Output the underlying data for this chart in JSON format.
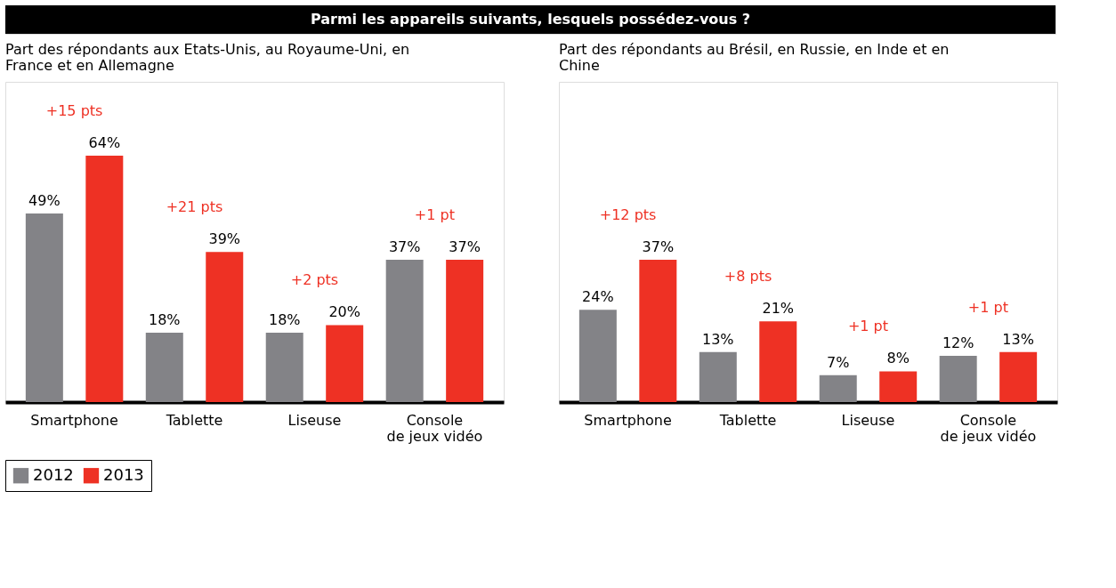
{
  "chart_data": [
    {
      "type": "bar",
      "title": "Parmi les appareils suivants, lesquels possédez-vous ?",
      "subtitle": "Part des répondants aux Etats-Unis, au Royaume-Uni, en\nFrance et en Allemagne",
      "categories": [
        "Smartphone",
        "Tablette",
        "Liseuse",
        "Console\nde jeux vidéo"
      ],
      "series": [
        {
          "name": "2012",
          "color": "#838387",
          "values": [
            49,
            18,
            18,
            37
          ],
          "value_labels": [
            "49%",
            "18%",
            "18%",
            "37%"
          ]
        },
        {
          "name": "2013",
          "color": "#ee3124",
          "values": [
            64,
            39,
            20,
            37
          ],
          "value_labels": [
            "64%",
            "39%",
            "20%",
            "37%"
          ]
        }
      ],
      "legend": "bottom",
      "grid": false,
      "annotations": [
        "+15 pts",
        "+21 pts",
        "+2 pts",
        "+1 pt"
      ]
    },
    {
      "type": "bar",
      "subtitle": "Part des répondants au Brésil, en Russie, en Inde et en\nChine",
      "categories": [
        "Smartphone",
        "Tablette",
        "Liseuse",
        "Console\nde jeux vidéo"
      ],
      "series": [
        {
          "name": "2012",
          "color": "#838387",
          "values": [
            24,
            13,
            7,
            12
          ],
          "value_labels": [
            "24%",
            "13%",
            "7%",
            "12%"
          ]
        },
        {
          "name": "2013",
          "color": "#ee3124",
          "values": [
            37,
            21,
            8,
            13
          ],
          "value_labels": [
            "37%",
            "21%",
            "8%",
            "13%"
          ]
        }
      ],
      "legend": "bottom",
      "grid": false,
      "annotations": [
        "+12 pts",
        "+8 pts",
        "+1 pt",
        "+1 pt"
      ]
    }
  ]
}
